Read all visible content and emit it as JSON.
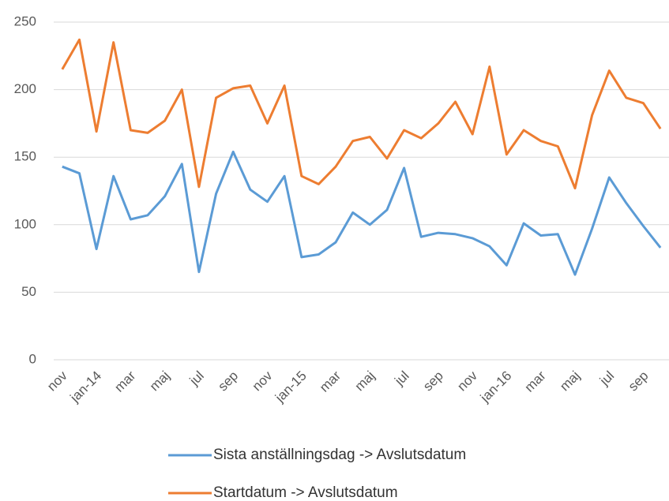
{
  "chart_data": {
    "type": "line",
    "categories": [
      "nov",
      null,
      "jan-14",
      null,
      "mar",
      null,
      "maj",
      null,
      "jul",
      null,
      "sep",
      null,
      "nov",
      null,
      "jan-15",
      null,
      "mar",
      null,
      "maj",
      null,
      "jul",
      null,
      "sep",
      null,
      "nov",
      null,
      "jan-16",
      null,
      "mar",
      null,
      "maj",
      null,
      "jul",
      null,
      "sep",
      null
    ],
    "series": [
      {
        "name": "Sista anställningsdag -> Avslutsdatum",
        "color": "#5b9bd5",
        "values": [
          143,
          138,
          82,
          136,
          104,
          107,
          121,
          145,
          65,
          123,
          154,
          126,
          117,
          136,
          76,
          78,
          87,
          109,
          100,
          111,
          142,
          91,
          94,
          93,
          90,
          84,
          70,
          101,
          92,
          93,
          63,
          97,
          135,
          116,
          99,
          83
        ]
      },
      {
        "name": "Startdatum -> Avslutsdatum",
        "color": "#ed7d31",
        "values": [
          215,
          237,
          169,
          235,
          170,
          168,
          177,
          200,
          128,
          194,
          201,
          203,
          175,
          203,
          136,
          130,
          143,
          162,
          165,
          149,
          170,
          164,
          175,
          191,
          167,
          217,
          152,
          170,
          162,
          158,
          127,
          181,
          214,
          194,
          190,
          171
        ]
      }
    ],
    "ylim": [
      0,
      250
    ],
    "yticks": [
      0,
      50,
      100,
      150,
      200,
      250
    ],
    "grid": true,
    "legend": "bottom"
  }
}
